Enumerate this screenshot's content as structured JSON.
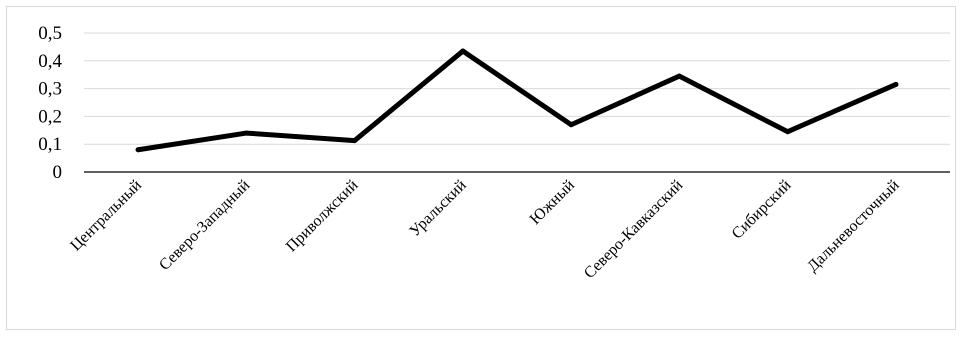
{
  "chart_data": {
    "type": "line",
    "title": "",
    "xlabel": "",
    "ylabel": "",
    "categories": [
      "Центральный",
      "Северо-Западный",
      "Приволжский",
      "Уральский",
      "Южный",
      "Северо-Кавказский",
      "Сибирский",
      "Дальневосточный"
    ],
    "series": [
      {
        "values": [
          0.08,
          0.14,
          0.113,
          0.435,
          0.17,
          0.345,
          0.145,
          0.315
        ]
      }
    ],
    "ylim": [
      0,
      0.5
    ],
    "yticks": [
      "0",
      "0,1",
      "0,2",
      "0,3",
      "0,4",
      "0,5"
    ],
    "grid": true,
    "legend": "none",
    "colors": {
      "line": "#000000",
      "grid": "#d9d9d9",
      "axis": "#000000"
    }
  }
}
